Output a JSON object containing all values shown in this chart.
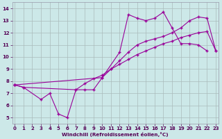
{
  "bg_color": "#cce8e8",
  "line_color": "#990099",
  "grid_color": "#aabbbb",
  "xlim": [
    -0.3,
    23.3
  ],
  "ylim": [
    4.5,
    14.5
  ],
  "yticks": [
    5,
    6,
    7,
    8,
    9,
    10,
    11,
    12,
    13,
    14
  ],
  "xticks": [
    0,
    1,
    2,
    3,
    4,
    5,
    6,
    7,
    8,
    9,
    10,
    11,
    12,
    13,
    14,
    15,
    16,
    17,
    18,
    19,
    20,
    21,
    22,
    23
  ],
  "xlabel": "Windchill (Refroidissement éolien,°C)",
  "series": [
    {
      "x": [
        0,
        1,
        3,
        4,
        5,
        6,
        7,
        8,
        9,
        10,
        12,
        13,
        14,
        15,
        16,
        17,
        18,
        19,
        20,
        21,
        22
      ],
      "y": [
        7.7,
        7.5,
        6.5,
        7.0,
        5.3,
        5.0,
        7.3,
        7.3,
        7.3,
        8.3,
        10.4,
        13.5,
        13.2,
        13.0,
        13.2,
        13.7,
        12.4,
        11.1,
        11.1,
        11.0,
        10.5
      ]
    },
    {
      "x": [
        0,
        10,
        11,
        12,
        13,
        14,
        15,
        16,
        17,
        18,
        19,
        20,
        21,
        22,
        23
      ],
      "y": [
        7.7,
        8.3,
        9.0,
        9.7,
        10.4,
        11.0,
        11.3,
        11.5,
        11.7,
        12.0,
        12.4,
        13.0,
        13.3,
        13.2,
        10.5
      ]
    },
    {
      "x": [
        0,
        1,
        7,
        8,
        9,
        10,
        11,
        12,
        13,
        14,
        15,
        16,
        17,
        18,
        19,
        20,
        21,
        22,
        23
      ],
      "y": [
        7.7,
        7.5,
        7.3,
        7.8,
        8.2,
        8.5,
        9.0,
        9.4,
        9.8,
        10.2,
        10.5,
        10.8,
        11.1,
        11.3,
        11.6,
        11.8,
        12.0,
        12.1,
        10.5
      ]
    }
  ]
}
